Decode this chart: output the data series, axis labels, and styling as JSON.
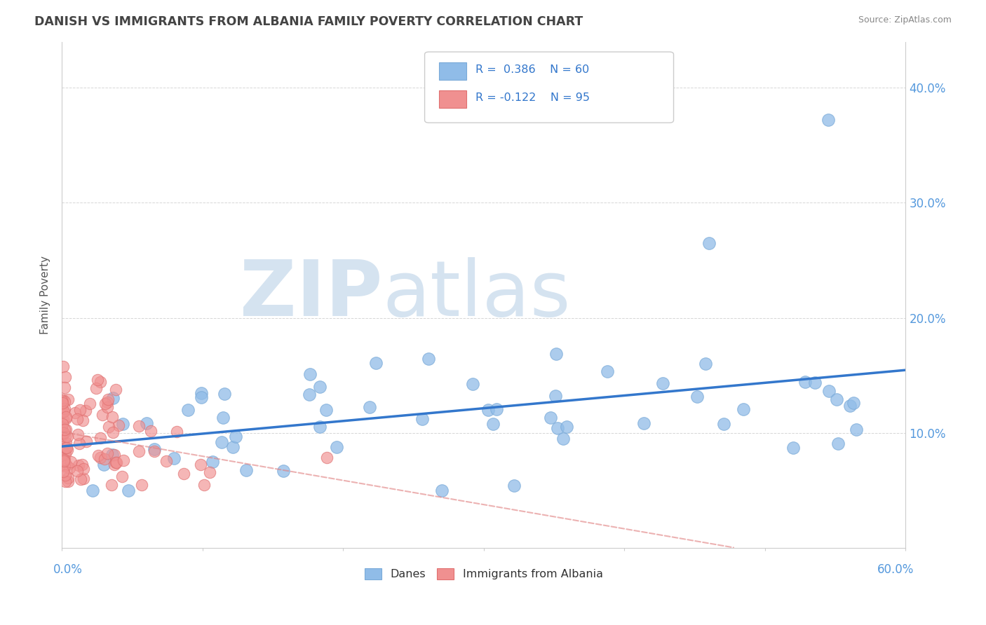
{
  "title": "DANISH VS IMMIGRANTS FROM ALBANIA FAMILY POVERTY CORRELATION CHART",
  "source": "Source: ZipAtlas.com",
  "ylabel": "Family Poverty",
  "yticks": [
    0.0,
    0.1,
    0.2,
    0.3,
    0.4
  ],
  "ytick_labels_left": [
    "",
    "",
    "",
    "",
    ""
  ],
  "ytick_labels_right": [
    "",
    "10.0%",
    "20.0%",
    "30.0%",
    "40.0%"
  ],
  "xlim": [
    0.0,
    0.6
  ],
  "ylim": [
    0.0,
    0.44
  ],
  "danes_color": "#90bce8",
  "danes_edge_color": "#7aaad8",
  "albania_color": "#f09090",
  "albania_edge_color": "#e07070",
  "trend_danes_color": "#3377cc",
  "trend_albania_color": "#e08080",
  "background_color": "#ffffff",
  "watermark_color": "#d5e3f0",
  "grid_color": "#cccccc",
  "title_color": "#444444",
  "source_color": "#888888",
  "legend_text_color": "#3377cc",
  "tick_label_color": "#5599dd",
  "xlabel_color": "#5599dd",
  "ylabel_color": "#555555"
}
